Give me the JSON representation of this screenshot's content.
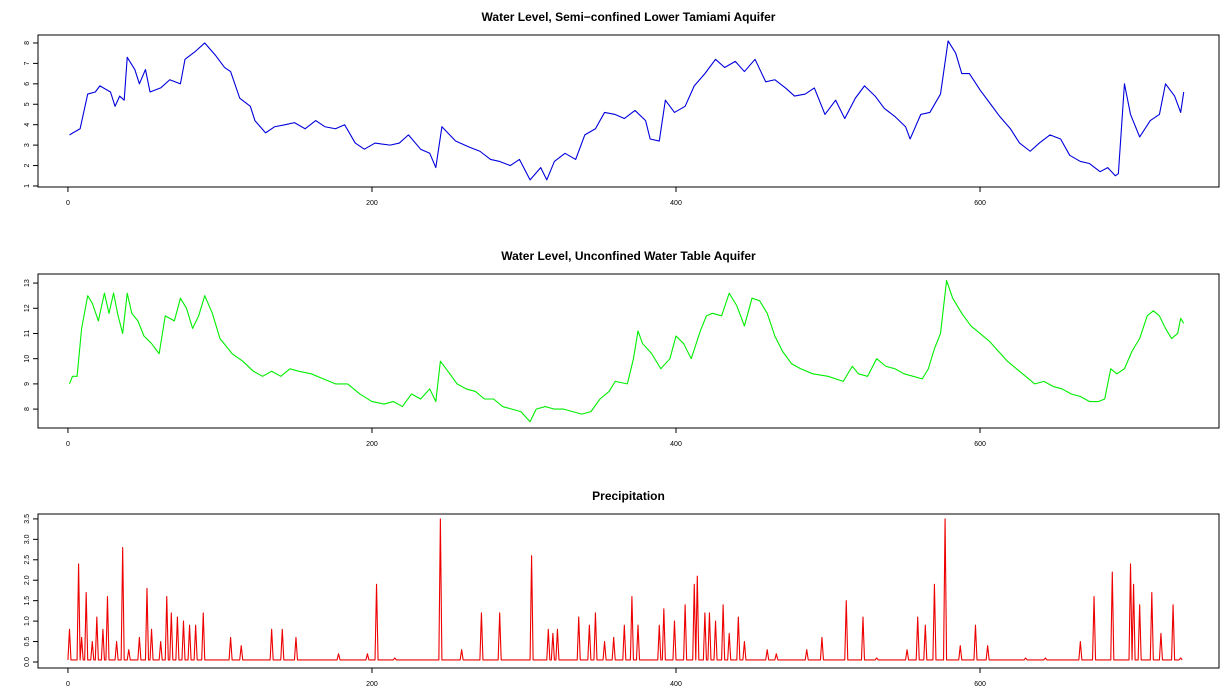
{
  "chart_data": [
    {
      "type": "line",
      "title": "Water Level, Semi−confined Lower Tamiami Aquifer",
      "color": "#0000dd",
      "x": [
        1,
        8,
        13,
        18,
        21,
        28,
        31,
        34,
        37,
        39,
        44,
        47,
        51,
        54,
        61,
        67,
        74,
        77,
        84,
        90,
        97,
        103,
        107,
        113,
        120,
        123,
        130,
        136,
        143,
        149,
        156,
        163,
        169,
        176,
        182,
        189,
        195,
        202,
        212,
        218,
        224,
        232,
        238,
        242,
        246,
        255,
        264,
        271,
        278,
        284,
        291,
        297,
        304,
        311,
        315,
        320,
        327,
        334,
        340,
        347,
        353,
        360,
        366,
        373,
        380,
        383,
        389,
        393,
        399,
        406,
        412,
        419,
        426,
        432,
        439,
        445,
        452,
        459,
        465,
        472,
        478,
        485,
        491,
        498,
        505,
        511,
        518,
        524,
        531,
        537,
        544,
        551,
        554,
        561,
        567,
        574,
        579,
        584,
        588,
        593,
        600,
        607,
        613,
        620,
        626,
        633,
        639,
        646,
        653,
        659,
        666,
        672,
        679,
        684,
        689,
        691,
        695,
        699,
        705,
        712,
        718,
        722,
        728,
        732,
        734
      ],
      "values": [
        3.5,
        3.8,
        5.5,
        5.6,
        5.9,
        5.6,
        4.9,
        5.4,
        5.2,
        7.3,
        6.7,
        6.0,
        6.7,
        5.6,
        5.8,
        6.2,
        6.0,
        7.2,
        7.6,
        8.0,
        7.4,
        6.8,
        6.6,
        5.3,
        4.9,
        4.2,
        3.6,
        3.9,
        4.0,
        4.1,
        3.8,
        4.2,
        3.9,
        3.8,
        4.0,
        3.1,
        2.8,
        3.1,
        3.0,
        3.1,
        3.5,
        2.8,
        2.6,
        1.9,
        3.9,
        3.2,
        2.9,
        2.7,
        2.3,
        2.2,
        2.0,
        2.3,
        1.3,
        1.9,
        1.3,
        2.2,
        2.6,
        2.3,
        3.5,
        3.8,
        4.6,
        4.5,
        4.3,
        4.7,
        4.2,
        3.3,
        3.2,
        5.2,
        4.6,
        4.9,
        5.9,
        6.5,
        7.2,
        6.8,
        7.1,
        6.6,
        7.2,
        6.1,
        6.2,
        5.8,
        5.4,
        5.5,
        5.8,
        4.5,
        5.2,
        4.3,
        5.3,
        5.9,
        5.4,
        4.8,
        4.4,
        3.9,
        3.3,
        4.5,
        4.6,
        5.5,
        8.1,
        7.5,
        6.5,
        6.5,
        5.7,
        5.0,
        4.4,
        3.8,
        3.1,
        2.7,
        3.1,
        3.5,
        3.3,
        2.5,
        2.2,
        2.1,
        1.7,
        1.9,
        1.5,
        1.6,
        6.0,
        4.5,
        3.4,
        4.2,
        4.5,
        6.0,
        5.4,
        4.6,
        5.6
      ],
      "xlim": [
        -19.7,
        757.2
      ],
      "xticks": [
        0,
        200,
        400,
        600
      ],
      "ylim": [
        0.95,
        8.39
      ],
      "yticks": [
        1,
        2,
        3,
        4,
        5,
        6,
        7,
        8
      ]
    },
    {
      "type": "line",
      "title": "Water Level, Unconfined Water Table Aquifer",
      "color": "#00ee00",
      "x": [
        1,
        3,
        6,
        9,
        13,
        16,
        20,
        24,
        27,
        30,
        33,
        36,
        39,
        42,
        46,
        50,
        55,
        60,
        64,
        70,
        74,
        78,
        82,
        86,
        90,
        95,
        100,
        108,
        115,
        122,
        128,
        134,
        140,
        146,
        152,
        160,
        168,
        176,
        184,
        192,
        200,
        208,
        214,
        220,
        226,
        232,
        238,
        242,
        245,
        250,
        256,
        262,
        268,
        274,
        280,
        286,
        292,
        298,
        304,
        308,
        314,
        320,
        326,
        332,
        338,
        344,
        350,
        356,
        360,
        368,
        372,
        375,
        378,
        384,
        390,
        396,
        400,
        405,
        410,
        416,
        420,
        424,
        430,
        435,
        440,
        445,
        450,
        455,
        460,
        465,
        470,
        476,
        482,
        490,
        500,
        510,
        516,
        520,
        526,
        532,
        538,
        544,
        550,
        556,
        562,
        566,
        570,
        574,
        578,
        582,
        588,
        594,
        600,
        606,
        612,
        618,
        624,
        630,
        636,
        642,
        648,
        654,
        660,
        666,
        672,
        678,
        682,
        686,
        690,
        695,
        700,
        705,
        710,
        714,
        718,
        722,
        726,
        730,
        732,
        734
      ],
      "values": [
        9.0,
        9.3,
        9.3,
        11.2,
        12.5,
        12.2,
        11.5,
        12.6,
        11.8,
        12.6,
        11.7,
        11.0,
        12.6,
        11.8,
        11.5,
        10.9,
        10.6,
        10.2,
        11.7,
        11.5,
        12.4,
        12.0,
        11.2,
        11.7,
        12.5,
        11.8,
        10.8,
        10.2,
        9.9,
        9.5,
        9.3,
        9.5,
        9.3,
        9.6,
        9.5,
        9.4,
        9.2,
        9.0,
        9.0,
        8.6,
        8.3,
        8.2,
        8.3,
        8.1,
        8.6,
        8.4,
        8.8,
        8.3,
        9.9,
        9.5,
        9.0,
        8.8,
        8.7,
        8.4,
        8.4,
        8.1,
        8.0,
        7.9,
        7.5,
        8.0,
        8.1,
        8.0,
        8.0,
        7.9,
        7.8,
        7.9,
        8.4,
        8.7,
        9.1,
        9.0,
        10.0,
        11.1,
        10.6,
        10.2,
        9.6,
        10.0,
        10.9,
        10.6,
        10.0,
        11.1,
        11.7,
        11.8,
        11.7,
        12.6,
        12.1,
        11.3,
        12.4,
        12.3,
        11.8,
        10.9,
        10.3,
        9.8,
        9.6,
        9.4,
        9.3,
        9.1,
        9.7,
        9.4,
        9.3,
        10.0,
        9.7,
        9.6,
        9.4,
        9.3,
        9.2,
        9.6,
        10.4,
        11.0,
        13.1,
        12.4,
        11.8,
        11.3,
        11.0,
        10.7,
        10.3,
        9.9,
        9.6,
        9.3,
        9.0,
        9.1,
        8.9,
        8.8,
        8.6,
        8.5,
        8.3,
        8.3,
        8.4,
        9.6,
        9.4,
        9.6,
        10.3,
        10.8,
        11.7,
        11.9,
        11.7,
        11.2,
        10.8,
        11.0,
        11.6,
        11.4
      ],
      "xlim": [
        -19.7,
        757.2
      ],
      "xticks": [
        0,
        200,
        400,
        600
      ],
      "ylim": [
        7.25,
        13.36
      ],
      "yticks": [
        8,
        9,
        10,
        11,
        12,
        13
      ]
    },
    {
      "type": "line",
      "title": "Precipitation",
      "color": "#ee0000",
      "x": [
        0,
        1,
        2,
        6,
        7,
        8,
        9,
        10,
        11,
        12,
        13,
        15,
        16,
        17,
        18,
        19,
        20,
        22,
        23,
        24,
        25,
        26,
        27,
        31,
        32,
        33,
        35,
        36,
        37,
        39,
        40,
        41,
        46,
        47,
        48,
        51,
        52,
        53,
        54,
        55,
        56,
        60,
        61,
        62,
        64,
        65,
        66,
        67,
        68,
        69,
        71,
        72,
        73,
        75,
        76,
        77,
        79,
        80,
        81,
        83,
        84,
        85,
        88,
        89,
        90,
        106,
        107,
        108,
        113,
        114,
        115,
        133,
        134,
        135,
        140,
        141,
        142,
        149,
        150,
        151,
        177,
        178,
        179,
        196,
        197,
        198,
        202,
        203,
        204,
        214,
        215,
        216,
        244,
        245,
        246,
        258,
        259,
        260,
        271,
        272,
        273,
        283,
        284,
        285,
        304,
        305,
        306,
        315,
        316,
        317,
        318,
        319,
        320,
        321,
        322,
        323,
        335,
        336,
        337,
        342,
        343,
        344,
        346,
        347,
        348,
        352,
        353,
        354,
        358,
        359,
        360,
        365,
        366,
        367,
        370,
        371,
        372,
        374,
        375,
        376,
        388,
        389,
        390,
        391,
        392,
        393,
        398,
        399,
        400,
        405,
        406,
        407,
        411,
        412,
        413,
        414,
        415,
        418,
        419,
        420,
        421,
        422,
        423,
        425,
        426,
        427,
        430,
        431,
        432,
        434,
        435,
        436,
        440,
        441,
        442,
        444,
        445,
        446,
        459,
        460,
        461,
        465,
        466,
        467,
        485,
        486,
        487,
        495,
        496,
        497,
        511,
        512,
        513,
        522,
        523,
        524,
        531,
        532,
        533,
        551,
        552,
        553,
        558,
        559,
        560,
        563,
        564,
        565,
        569,
        570,
        571,
        576,
        577,
        578,
        586,
        587,
        588,
        596,
        597,
        598,
        604,
        605,
        606,
        629,
        630,
        631,
        642,
        643,
        644,
        665,
        666,
        667,
        674,
        675,
        676,
        686,
        687,
        688,
        698,
        699,
        700,
        701,
        702,
        704,
        705,
        706,
        712,
        713,
        714,
        718,
        719,
        720,
        726,
        727,
        728,
        731,
        732,
        733
      ],
      "values": [
        0.05,
        0.8,
        0.05,
        0.05,
        2.4,
        0.05,
        0.6,
        0.05,
        0.05,
        1.7,
        0.05,
        0.05,
        0.5,
        0.05,
        0.05,
        1.1,
        0.05,
        0.05,
        0.8,
        0.05,
        0.05,
        1.6,
        0.05,
        0.05,
        0.5,
        0.05,
        0.05,
        2.8,
        0.05,
        0.05,
        0.3,
        0.05,
        0.05,
        0.6,
        0.05,
        0.05,
        1.8,
        0.05,
        0.05,
        0.8,
        0.05,
        0.05,
        0.5,
        0.05,
        0.05,
        1.6,
        0.05,
        0.05,
        1.2,
        0.05,
        0.05,
        1.1,
        0.05,
        0.05,
        1.0,
        0.05,
        0.05,
        0.9,
        0.05,
        0.05,
        0.9,
        0.05,
        0.05,
        1.2,
        0.05,
        0.05,
        0.6,
        0.05,
        0.05,
        0.4,
        0.05,
        0.05,
        0.8,
        0.05,
        0.05,
        0.8,
        0.05,
        0.05,
        0.6,
        0.05,
        0.05,
        0.2,
        0.05,
        0.05,
        0.2,
        0.05,
        0.05,
        1.9,
        0.05,
        0.05,
        0.1,
        0.05,
        0.05,
        3.5,
        0.05,
        0.05,
        0.3,
        0.05,
        0.05,
        1.2,
        0.05,
        0.05,
        1.2,
        0.05,
        0.05,
        2.6,
        0.05,
        0.05,
        0.8,
        0.05,
        0.05,
        0.7,
        0.05,
        0.05,
        0.8,
        0.05,
        0.05,
        1.1,
        0.05,
        0.05,
        0.9,
        0.05,
        0.05,
        1.2,
        0.05,
        0.05,
        0.5,
        0.05,
        0.05,
        0.6,
        0.05,
        0.05,
        0.9,
        0.05,
        0.05,
        1.6,
        0.05,
        0.05,
        0.9,
        0.05,
        0.05,
        0.9,
        0.05,
        0.05,
        1.3,
        0.05,
        0.05,
        1.0,
        0.05,
        0.05,
        1.4,
        0.05,
        0.05,
        1.9,
        0.05,
        2.1,
        0.05,
        0.05,
        1.2,
        0.05,
        0.05,
        1.2,
        0.05,
        0.05,
        1.0,
        0.05,
        0.05,
        1.4,
        0.05,
        0.05,
        0.7,
        0.05,
        0.05,
        1.1,
        0.05,
        0.05,
        0.5,
        0.05,
        0.05,
        0.3,
        0.05,
        0.05,
        0.2,
        0.05,
        0.05,
        0.3,
        0.05,
        0.05,
        0.6,
        0.05,
        0.05,
        1.5,
        0.05,
        0.05,
        1.1,
        0.05,
        0.05,
        0.1,
        0.05,
        0.05,
        0.3,
        0.05,
        0.05,
        1.1,
        0.05,
        0.05,
        0.9,
        0.05,
        0.05,
        1.9,
        0.05,
        0.05,
        3.5,
        0.05,
        0.05,
        0.4,
        0.05,
        0.05,
        0.9,
        0.05,
        0.05,
        0.4,
        0.05,
        0.05,
        0.1,
        0.05,
        0.05,
        0.1,
        0.05,
        0.05,
        0.5,
        0.05,
        0.05,
        1.6,
        0.05,
        0.05,
        2.2,
        0.05,
        0.05,
        2.4,
        0.05,
        1.9,
        0.05,
        0.05,
        1.4,
        0.05,
        0.05,
        1.7,
        0.05,
        0.05,
        0.7,
        0.05,
        0.05,
        1.4,
        0.05,
        0.05,
        0.1,
        0.05
      ],
      "xlim": [
        -19.7,
        757.2
      ],
      "xticks": [
        0,
        200,
        400,
        600
      ],
      "ylim": [
        -0.147,
        3.62
      ],
      "yticks": [
        {
          "value": 0,
          "label": "0.0"
        },
        0.5,
        {
          "value": 1,
          "label": "1.0"
        },
        1.5,
        {
          "value": 2,
          "label": "2.0"
        },
        2.5,
        {
          "value": 3,
          "label": "3.0"
        },
        3.5
      ]
    }
  ]
}
